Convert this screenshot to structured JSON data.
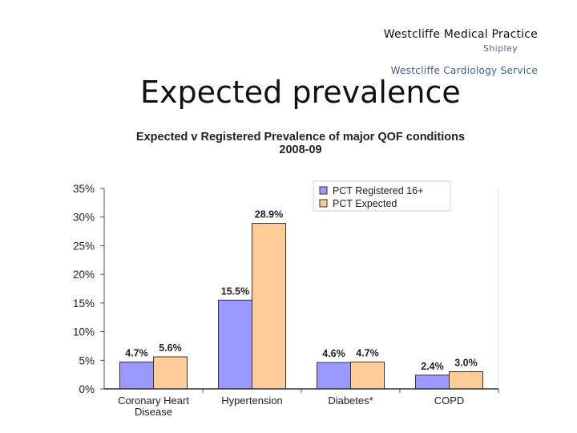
{
  "header": {
    "practice": "Westcliffe Medical Practice",
    "location": "Shipley",
    "service": "Westcliffe Cardiology Service"
  },
  "slide_title": "Expected prevalence",
  "chart_data": {
    "type": "bar",
    "title": "Expected v Registered Prevalence of major QOF conditions",
    "subtitle": "2008-09",
    "categories": [
      [
        "Coronary Heart",
        "Disease"
      ],
      [
        "Hypertension"
      ],
      [
        "Diabetes*"
      ],
      [
        "COPD"
      ]
    ],
    "series": [
      {
        "name": "PCT Registered 16+",
        "color": "#9999ff",
        "values": [
          4.7,
          15.5,
          4.6,
          2.4
        ],
        "labels": [
          "4.7%",
          "15.5%",
          "4.6%",
          "2.4%"
        ]
      },
      {
        "name": "PCT Expected",
        "color": "#ffcc99",
        "values": [
          5.6,
          28.9,
          4.7,
          3.0
        ],
        "labels": [
          "5.6%",
          "28.9%",
          "4.7%",
          "3.0%"
        ]
      }
    ],
    "ylim": [
      0,
      35
    ],
    "yticks": [
      0,
      5,
      10,
      15,
      20,
      25,
      30,
      35
    ],
    "ytick_labels": [
      "0%",
      "5%",
      "10%",
      "15%",
      "20%",
      "25%",
      "30%",
      "35%"
    ],
    "xlabel": "",
    "ylabel": "",
    "legend": "top-right",
    "grid": false
  }
}
